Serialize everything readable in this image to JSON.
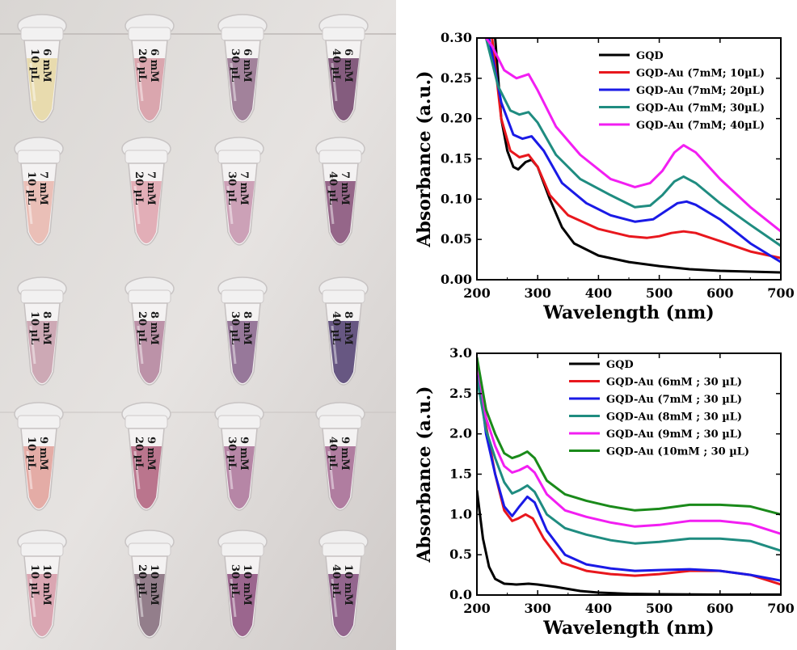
{
  "colors": {
    "black": "#000000",
    "red": "#e8171d",
    "blue": "#1a1ae6",
    "teal": "#1f8c80",
    "magenta": "#f21ef2",
    "green": "#1a8a1a"
  },
  "photo": {
    "rows": [
      {
        "tubes": [
          {
            "line1": "6 mM",
            "line2": "10 µL",
            "liquid": "#e6d9a8"
          },
          {
            "line1": "6 mM",
            "line2": "20 µL",
            "liquid": "#d7a0a8"
          },
          {
            "line1": "6 mM",
            "line2": "30 µL",
            "liquid": "#9a7894"
          },
          {
            "line1": "6 mM",
            "line2": "40 µL",
            "liquid": "#7a4f74"
          }
        ]
      },
      {
        "tubes": [
          {
            "line1": "7 mM",
            "line2": "10 µL",
            "liquid": "#e8bbb2"
          },
          {
            "line1": "7 mM",
            "line2": "20 µL",
            "liquid": "#e0a8b2"
          },
          {
            "line1": "7 mM",
            "line2": "30 µL",
            "liquid": "#c89ab2"
          },
          {
            "line1": "7 mM",
            "line2": "40 µL",
            "liquid": "#8c5a80"
          }
        ]
      },
      {
        "tubes": [
          {
            "line1": "8 mM",
            "line2": "10 µL",
            "liquid": "#c9a3b0"
          },
          {
            "line1": "8 mM",
            "line2": "20 µL",
            "liquid": "#b68aa2"
          },
          {
            "line1": "8 mM",
            "line2": "30 µL",
            "liquid": "#8e6e92"
          },
          {
            "line1": "8 mM",
            "line2": "40 µL",
            "liquid": "#5a4a78"
          }
        ]
      },
      {
        "tubes": [
          {
            "line1": "9 mM",
            "line2": "10 µL",
            "liquid": "#e2a6a0"
          },
          {
            "line1": "9 mM",
            "line2": "20 µL",
            "liquid": "#b46a84"
          },
          {
            "line1": "9 mM",
            "line2": "30 µL",
            "liquid": "#b07da0"
          },
          {
            "line1": "9 mM",
            "line2": "40 µL",
            "liquid": "#a97399"
          }
        ]
      },
      {
        "tubes": [
          {
            "line1": "10 mM",
            "line2": "10 µL",
            "liquid": "#d7a0ac"
          },
          {
            "line1": "10 mM",
            "line2": "20 µL",
            "liquid": "#8a7482"
          },
          {
            "line1": "10 mM",
            "line2": "30 µL",
            "liquid": "#925a86"
          },
          {
            "line1": "10 mM",
            "line2": "40 µL",
            "liquid": "#8a5a86"
          }
        ]
      }
    ]
  },
  "chart_data": [
    {
      "type": "line",
      "title": "",
      "xlabel": "Wavelength (nm)",
      "ylabel": "Absorbance (a.u.)",
      "xlim": [
        200,
        700
      ],
      "ylim": [
        0,
        0.3
      ],
      "xticks": [
        "200",
        "300",
        "400",
        "500",
        "600",
        "700"
      ],
      "yticks": [
        "0.00",
        "0.05",
        "0.10",
        "0.15",
        "0.20",
        "0.25",
        "0.30"
      ],
      "legend_position": "top-right",
      "series": [
        {
          "name": "GQD",
          "color": "#000000",
          "points": [
            [
              230,
              0.3
            ],
            [
              240,
              0.2
            ],
            [
              250,
              0.16
            ],
            [
              260,
              0.14
            ],
            [
              268,
              0.137
            ],
            [
              280,
              0.146
            ],
            [
              290,
              0.149
            ],
            [
              300,
              0.14
            ],
            [
              320,
              0.1
            ],
            [
              340,
              0.065
            ],
            [
              360,
              0.045
            ],
            [
              400,
              0.03
            ],
            [
              450,
              0.022
            ],
            [
              500,
              0.017
            ],
            [
              550,
              0.013
            ],
            [
              600,
              0.011
            ],
            [
              650,
              0.01
            ],
            [
              700,
              0.009
            ]
          ]
        },
        {
          "name": "GQD-Au (7mM; 10µL)",
          "color": "#e8171d",
          "points": [
            [
              225,
              0.3
            ],
            [
              240,
              0.2
            ],
            [
              255,
              0.16
            ],
            [
              270,
              0.152
            ],
            [
              285,
              0.155
            ],
            [
              300,
              0.14
            ],
            [
              320,
              0.105
            ],
            [
              350,
              0.08
            ],
            [
              400,
              0.063
            ],
            [
              450,
              0.054
            ],
            [
              480,
              0.052
            ],
            [
              500,
              0.054
            ],
            [
              520,
              0.058
            ],
            [
              540,
              0.06
            ],
            [
              560,
              0.058
            ],
            [
              600,
              0.048
            ],
            [
              650,
              0.035
            ],
            [
              700,
              0.027
            ]
          ]
        },
        {
          "name": "GQD-Au (7mM; 20µL)",
          "color": "#1a1ae6",
          "points": [
            [
              220,
              0.3
            ],
            [
              240,
              0.22
            ],
            [
              260,
              0.18
            ],
            [
              275,
              0.175
            ],
            [
              290,
              0.178
            ],
            [
              310,
              0.16
            ],
            [
              340,
              0.12
            ],
            [
              380,
              0.095
            ],
            [
              420,
              0.08
            ],
            [
              460,
              0.072
            ],
            [
              490,
              0.075
            ],
            [
              510,
              0.085
            ],
            [
              530,
              0.095
            ],
            [
              545,
              0.097
            ],
            [
              560,
              0.093
            ],
            [
              600,
              0.075
            ],
            [
              650,
              0.045
            ],
            [
              700,
              0.022
            ]
          ]
        },
        {
          "name": "GQD-Au (7mM; 30µL)",
          "color": "#1f8c80",
          "points": [
            [
              215,
              0.3
            ],
            [
              235,
              0.24
            ],
            [
              255,
              0.21
            ],
            [
              270,
              0.205
            ],
            [
              285,
              0.208
            ],
            [
              300,
              0.195
            ],
            [
              330,
              0.155
            ],
            [
              370,
              0.125
            ],
            [
              420,
              0.105
            ],
            [
              460,
              0.09
            ],
            [
              485,
              0.092
            ],
            [
              505,
              0.105
            ],
            [
              525,
              0.122
            ],
            [
              540,
              0.128
            ],
            [
              560,
              0.12
            ],
            [
              600,
              0.095
            ],
            [
              650,
              0.068
            ],
            [
              700,
              0.042
            ]
          ]
        },
        {
          "name": "GQD-Au (7mM; 40µL)",
          "color": "#f21ef2",
          "points": [
            [
              215,
              0.3
            ],
            [
              225,
              0.29
            ],
            [
              245,
              0.26
            ],
            [
              265,
              0.25
            ],
            [
              285,
              0.255
            ],
            [
              300,
              0.235
            ],
            [
              330,
              0.19
            ],
            [
              370,
              0.155
            ],
            [
              420,
              0.125
            ],
            [
              460,
              0.115
            ],
            [
              485,
              0.12
            ],
            [
              505,
              0.135
            ],
            [
              525,
              0.158
            ],
            [
              540,
              0.167
            ],
            [
              560,
              0.158
            ],
            [
              600,
              0.125
            ],
            [
              650,
              0.09
            ],
            [
              700,
              0.06
            ]
          ]
        }
      ]
    },
    {
      "type": "line",
      "title": "",
      "xlabel": "Wavelength (nm)",
      "ylabel": "Absorbance (a.u.)",
      "xlim": [
        200,
        700
      ],
      "ylim": [
        0,
        3.0
      ],
      "xticks": [
        "200",
        "300",
        "400",
        "500",
        "600",
        "700"
      ],
      "yticks": [
        "0.0",
        "0.5",
        "1.0",
        "1.5",
        "2.0",
        "2.5",
        "3.0"
      ],
      "legend_position": "top-right",
      "series": [
        {
          "name": "GQD",
          "color": "#000000",
          "points": [
            [
              200,
              1.3
            ],
            [
              210,
              0.7
            ],
            [
              220,
              0.35
            ],
            [
              230,
              0.2
            ],
            [
              245,
              0.14
            ],
            [
              265,
              0.13
            ],
            [
              285,
              0.14
            ],
            [
              300,
              0.13
            ],
            [
              330,
              0.1
            ],
            [
              370,
              0.05
            ],
            [
              400,
              0.03
            ],
            [
              450,
              0.015
            ],
            [
              500,
              0.01
            ],
            [
              600,
              0.005
            ],
            [
              700,
              0.005
            ]
          ]
        },
        {
          "name": "GQD-Au (6mM ; 30 µL)",
          "color": "#e8171d",
          "points": [
            [
              200,
              2.9
            ],
            [
              215,
              2.1
            ],
            [
              230,
              1.5
            ],
            [
              245,
              1.05
            ],
            [
              258,
              0.92
            ],
            [
              268,
              0.95
            ],
            [
              280,
              1.0
            ],
            [
              292,
              0.95
            ],
            [
              310,
              0.7
            ],
            [
              340,
              0.4
            ],
            [
              380,
              0.3
            ],
            [
              420,
              0.26
            ],
            [
              460,
              0.24
            ],
            [
              500,
              0.26
            ],
            [
              550,
              0.3
            ],
            [
              600,
              0.3
            ],
            [
              650,
              0.25
            ],
            [
              700,
              0.13
            ]
          ]
        },
        {
          "name": "GQD-Au (7mM ; 30 µL)",
          "color": "#1a1ae6",
          "points": [
            [
              200,
              2.9
            ],
            [
              215,
              2.0
            ],
            [
              230,
              1.5
            ],
            [
              245,
              1.1
            ],
            [
              258,
              0.98
            ],
            [
              270,
              1.1
            ],
            [
              283,
              1.22
            ],
            [
              295,
              1.15
            ],
            [
              315,
              0.8
            ],
            [
              345,
              0.5
            ],
            [
              380,
              0.38
            ],
            [
              420,
              0.33
            ],
            [
              460,
              0.3
            ],
            [
              500,
              0.31
            ],
            [
              550,
              0.32
            ],
            [
              600,
              0.3
            ],
            [
              650,
              0.25
            ],
            [
              700,
              0.18
            ]
          ]
        },
        {
          "name": "GQD-Au (8mM ; 30 µL)",
          "color": "#1f8c80",
          "points": [
            [
              200,
              2.7
            ],
            [
              215,
              2.05
            ],
            [
              230,
              1.7
            ],
            [
              245,
              1.4
            ],
            [
              258,
              1.26
            ],
            [
              270,
              1.3
            ],
            [
              283,
              1.36
            ],
            [
              295,
              1.28
            ],
            [
              315,
              1.0
            ],
            [
              345,
              0.83
            ],
            [
              380,
              0.75
            ],
            [
              420,
              0.68
            ],
            [
              460,
              0.64
            ],
            [
              500,
              0.66
            ],
            [
              550,
              0.7
            ],
            [
              600,
              0.7
            ],
            [
              650,
              0.67
            ],
            [
              700,
              0.55
            ]
          ]
        },
        {
          "name": "GQD-Au (9mM ; 30 µL)",
          "color": "#f21ef2",
          "points": [
            [
              200,
              2.9
            ],
            [
              215,
              2.2
            ],
            [
              230,
              1.85
            ],
            [
              245,
              1.6
            ],
            [
              258,
              1.52
            ],
            [
              270,
              1.55
            ],
            [
              283,
              1.6
            ],
            [
              295,
              1.52
            ],
            [
              315,
              1.25
            ],
            [
              345,
              1.05
            ],
            [
              380,
              0.97
            ],
            [
              420,
              0.9
            ],
            [
              460,
              0.85
            ],
            [
              500,
              0.87
            ],
            [
              550,
              0.92
            ],
            [
              600,
              0.92
            ],
            [
              650,
              0.88
            ],
            [
              700,
              0.76
            ]
          ]
        },
        {
          "name": "GQD-Au (10mM ; 30 µL)",
          "color": "#1a8a1a",
          "points": [
            [
              200,
              2.95
            ],
            [
              215,
              2.3
            ],
            [
              230,
              2.0
            ],
            [
              245,
              1.76
            ],
            [
              258,
              1.7
            ],
            [
              270,
              1.73
            ],
            [
              283,
              1.78
            ],
            [
              295,
              1.7
            ],
            [
              315,
              1.42
            ],
            [
              345,
              1.25
            ],
            [
              380,
              1.17
            ],
            [
              420,
              1.1
            ],
            [
              460,
              1.05
            ],
            [
              500,
              1.07
            ],
            [
              550,
              1.12
            ],
            [
              600,
              1.12
            ],
            [
              650,
              1.1
            ],
            [
              700,
              1.0
            ]
          ]
        }
      ]
    }
  ]
}
